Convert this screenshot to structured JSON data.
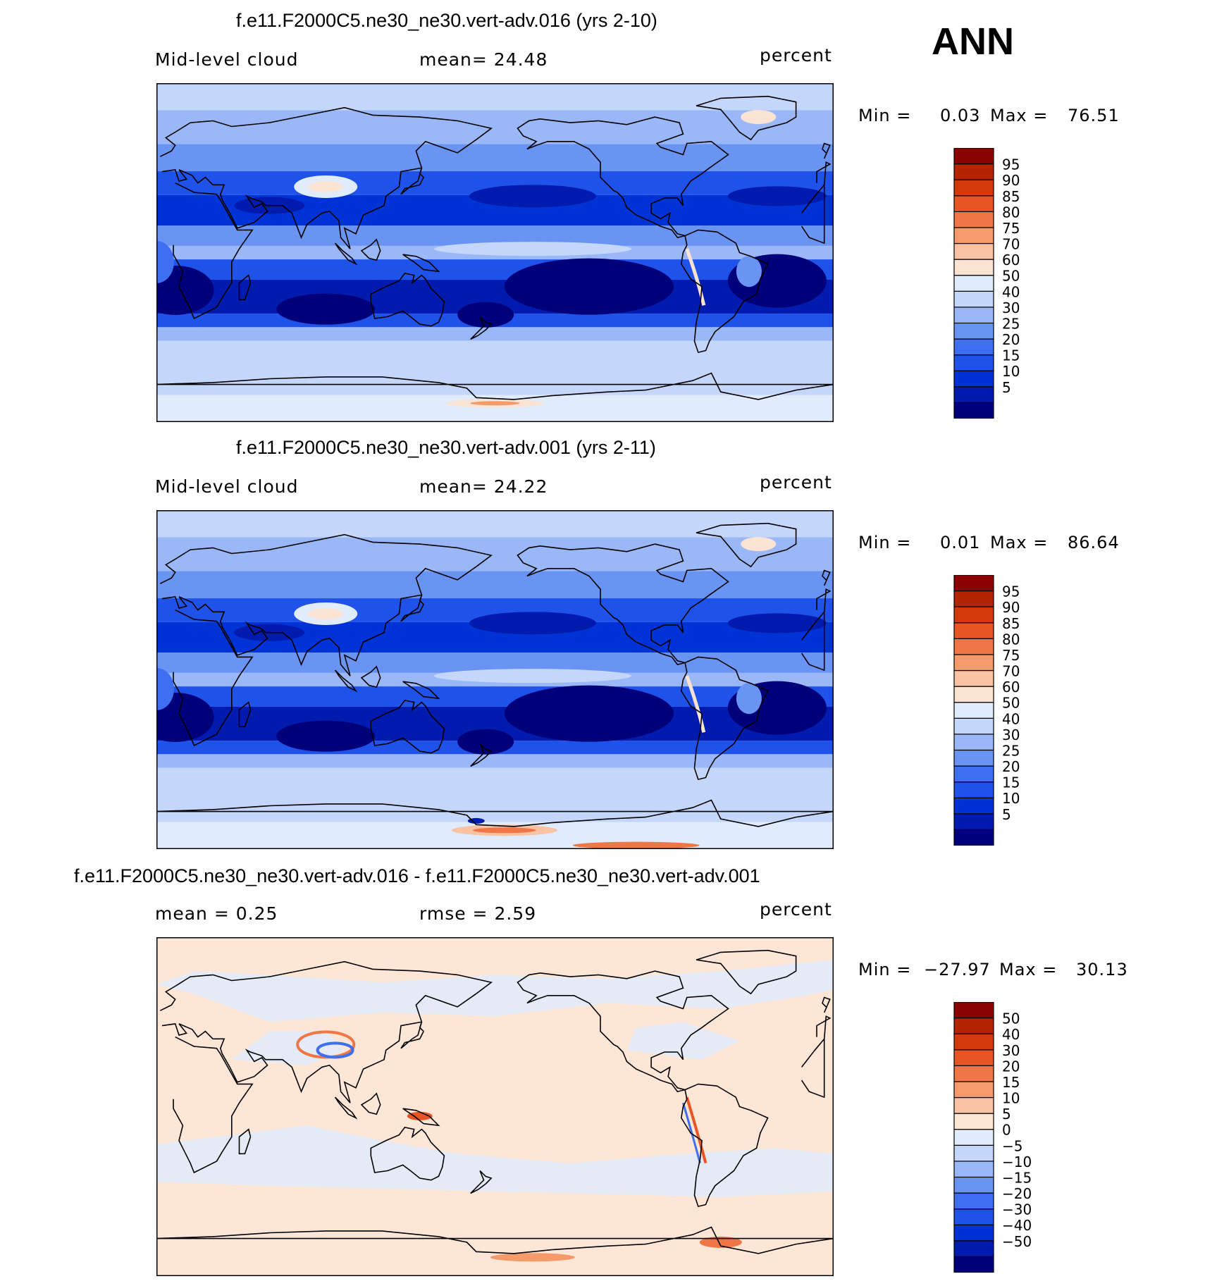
{
  "season": "ANN",
  "colors": {
    "mean_scale": [
      "#00007a",
      "#001bad",
      "#0033d6",
      "#1f52e8",
      "#3d6ff0",
      "#6a94f4",
      "#9ab7f7",
      "#c4d6fa",
      "#e0ebfc",
      "#fbe3d4",
      "#f8c2a3",
      "#f59a6b",
      "#ef7646",
      "#e85524",
      "#d23a0c",
      "#b52400",
      "#8b0000"
    ],
    "diff_scale": [
      "#00007a",
      "#001bad",
      "#0033d6",
      "#1f52e8",
      "#3d6ff0",
      "#6a94f4",
      "#9ab7f7",
      "#c4d6fa",
      "#e0ebfc",
      "#fde6d6",
      "#f8c2a3",
      "#f59a6b",
      "#ef7646",
      "#e85524",
      "#d23a0c",
      "#b52400",
      "#8b0000"
    ],
    "coastline": "#000000"
  },
  "chart_data": [
    {
      "type": "heatmap",
      "title": "f.e11.F2000C5.ne30_ne30.vert-adv.016 (yrs 2-10)",
      "left_label": "Mid-level cloud",
      "center_label": "mean=   24.48",
      "units": "percent",
      "min_label": "Min =",
      "min_value": "0.03",
      "max_label": "Max =",
      "max_value": "76.51",
      "colorbar_levels": [
        "95",
        "90",
        "85",
        "80",
        "75",
        "70",
        "60",
        "50",
        "40",
        "30",
        "25",
        "20",
        "15",
        "10",
        "5"
      ]
    },
    {
      "type": "heatmap",
      "title": "f.e11.F2000C5.ne30_ne30.vert-adv.001 (yrs 2-11)",
      "left_label": "Mid-level cloud",
      "center_label": "mean=   24.22",
      "units": "percent",
      "min_label": "Min =",
      "min_value": "0.01",
      "max_label": "Max =",
      "max_value": "86.64",
      "colorbar_levels": [
        "95",
        "90",
        "85",
        "80",
        "75",
        "70",
        "60",
        "50",
        "40",
        "30",
        "25",
        "20",
        "15",
        "10",
        "5"
      ]
    },
    {
      "type": "heatmap",
      "title": "f.e11.F2000C5.ne30_ne30.vert-adv.016 - f.e11.F2000C5.ne30_ne30.vert-adv.001",
      "left_label": "mean =     0.25",
      "center_label": "rmse =     2.59",
      "units": "percent",
      "min_label": "Min =",
      "min_value": "−27.97",
      "max_label": "Max =",
      "max_value": "30.13",
      "colorbar_levels": [
        "50",
        "40",
        "30",
        "20",
        "15",
        "10",
        "5",
        "0",
        "−5",
        "−10",
        "−15",
        "−20",
        "−30",
        "−40",
        "−50"
      ]
    }
  ]
}
